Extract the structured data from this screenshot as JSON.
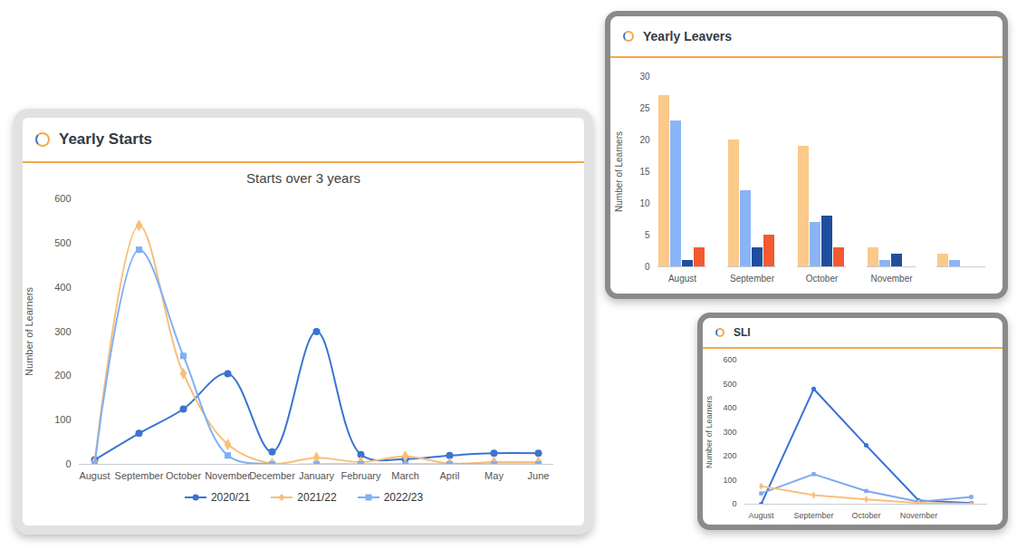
{
  "chart_data": [
    {
      "type": "line",
      "title": "Yearly Starts",
      "subtitle": "Starts over 3 years",
      "y_label": "Number of Learners",
      "categories": [
        "August",
        "September",
        "October",
        "November",
        "December",
        "January",
        "February",
        "March",
        "April",
        "May",
        "June"
      ],
      "series": [
        {
          "name": "2020/21",
          "color": "#3a74d0",
          "marker": "circle",
          "line_style": "smooth",
          "values": [
            10,
            70,
            125,
            205,
            28,
            300,
            22,
            12,
            20,
            25,
            25
          ]
        },
        {
          "name": "2021/22",
          "color": "#f8bf7a",
          "marker": "diamond",
          "line_style": "smooth",
          "values": [
            5,
            540,
            205,
            45,
            2,
            15,
            5,
            18,
            2,
            5,
            5
          ]
        },
        {
          "name": "2022/23",
          "color": "#7fb0f5",
          "marker": "square",
          "line_style": "smooth",
          "values": [
            0,
            485,
            245,
            20,
            0,
            0,
            0,
            0,
            0,
            0,
            0
          ]
        }
      ],
      "ylim": [
        0,
        600
      ],
      "yticks": [
        0,
        100,
        200,
        300,
        400,
        500,
        600
      ],
      "grid": false,
      "legend": "bottom"
    },
    {
      "type": "bar",
      "title": "Yearly Leavers",
      "y_label": "Number of Learners",
      "categories": [
        "August",
        "September",
        "October",
        "November",
        null
      ],
      "series": [
        {
          "color": "#fbc98a",
          "values": [
            27,
            20,
            19,
            3,
            2
          ]
        },
        {
          "color": "#8ab4f8",
          "values": [
            23,
            12,
            7,
            1,
            1
          ]
        },
        {
          "color": "#1f4e9c",
          "values": [
            1,
            3,
            8,
            2,
            null
          ]
        },
        {
          "color": "#f4592f",
          "values": [
            3,
            5,
            3,
            null,
            null
          ]
        }
      ],
      "ylim": [
        0,
        30
      ],
      "yticks": [
        0,
        5,
        10,
        15,
        20,
        25,
        30
      ],
      "grid": false
    },
    {
      "type": "line",
      "title": "SLI",
      "y_label": "Number of Learners",
      "categories": [
        "August",
        "September",
        "October",
        "November",
        null
      ],
      "series": [
        {
          "color": "#3a6fd8",
          "marker": "circle",
          "line_style": "solid",
          "values": [
            0,
            480,
            245,
            15,
            5
          ]
        },
        {
          "color": "#7fa8ee",
          "marker": "square",
          "line_style": "solid",
          "values": [
            45,
            125,
            55,
            10,
            30
          ]
        },
        {
          "color": "#f8bf7a",
          "marker": "diamond",
          "line_style": "solid",
          "values": [
            75,
            38,
            20,
            5,
            2
          ]
        }
      ],
      "ylim": [
        0,
        600
      ],
      "yticks": [
        0,
        100,
        200,
        300,
        400,
        500,
        600
      ],
      "grid": false
    }
  ]
}
